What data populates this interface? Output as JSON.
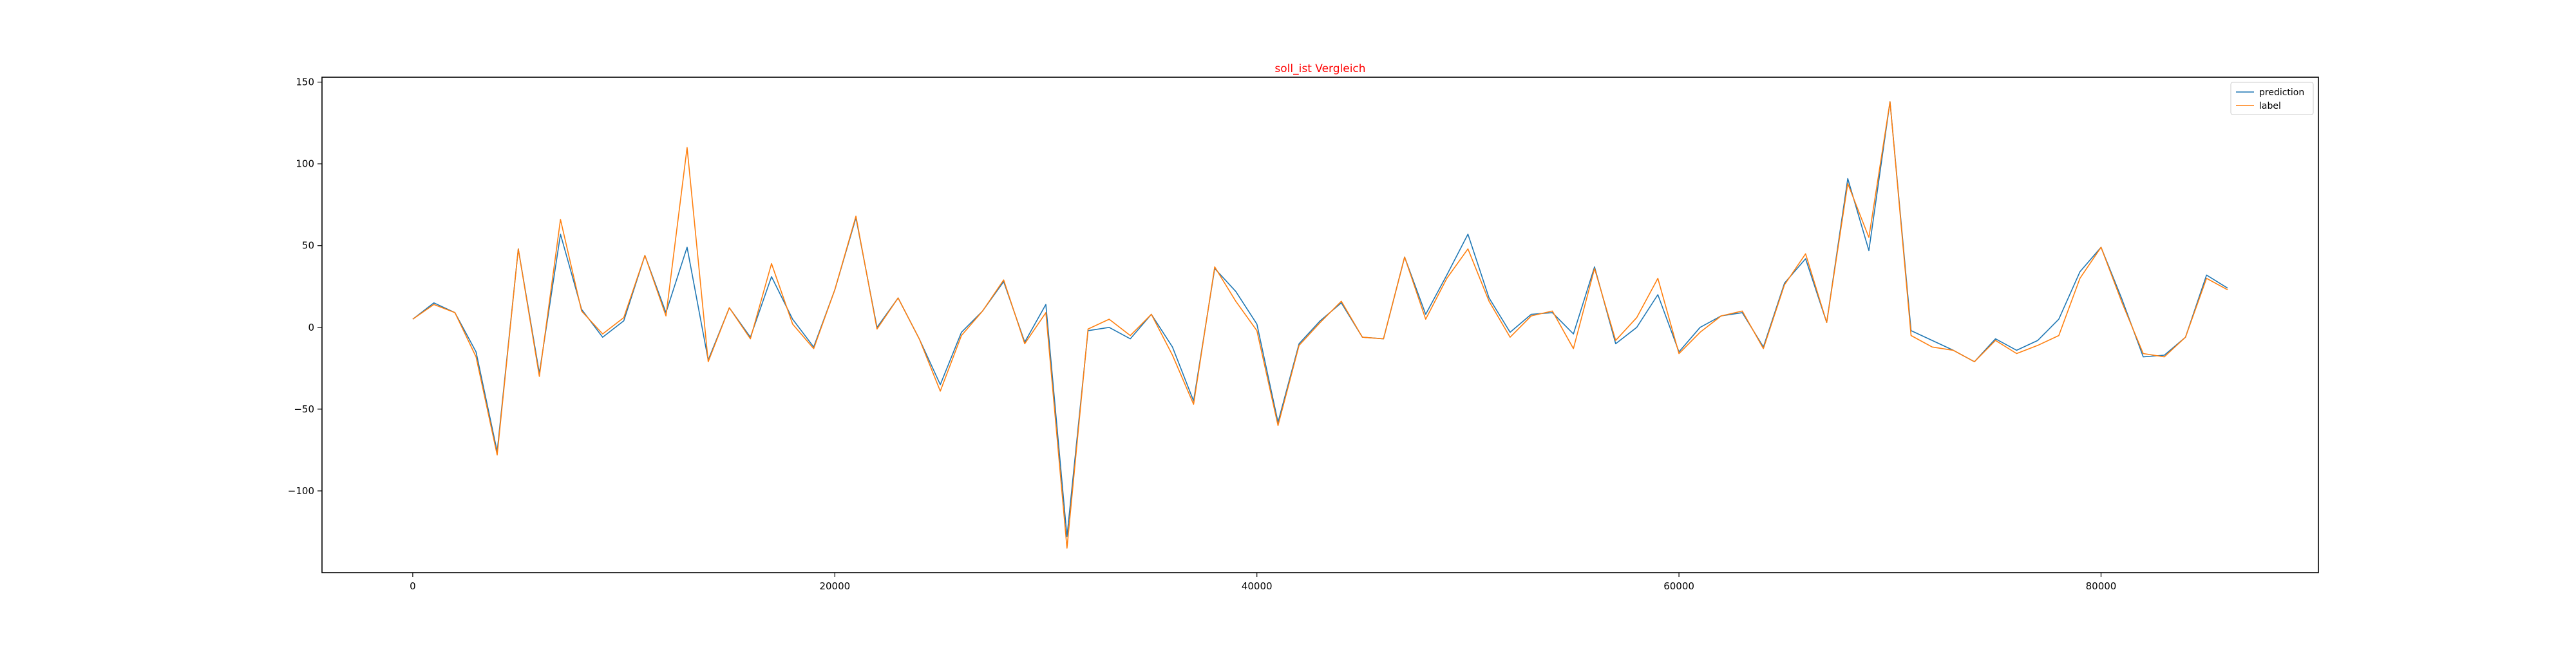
{
  "chart_data": {
    "type": "line",
    "title": "soll_ist Vergleich",
    "title_color": "#ff0000",
    "xlabel": "",
    "ylabel": "",
    "xlim": [
      -4300,
      90300
    ],
    "ylim": [
      -150,
      153
    ],
    "x_ticks": [
      0,
      20000,
      40000,
      60000,
      80000
    ],
    "x_tick_labels": [
      "0",
      "20000",
      "40000",
      "60000",
      "80000"
    ],
    "y_ticks": [
      -100,
      -50,
      0,
      50,
      100,
      150
    ],
    "y_tick_labels": [
      "−100",
      "−50",
      "0",
      "50",
      "100",
      "150"
    ],
    "grid": false,
    "legend": {
      "position": "top-right"
    },
    "x": [
      0,
      1000,
      2000,
      3000,
      4000,
      5000,
      6000,
      7000,
      8000,
      9000,
      10000,
      11000,
      12000,
      13000,
      14000,
      15000,
      16000,
      17000,
      18000,
      19000,
      20000,
      21000,
      22000,
      23000,
      24000,
      25000,
      26000,
      27000,
      28000,
      29000,
      30000,
      31000,
      32000,
      33000,
      34000,
      35000,
      36000,
      37000,
      38000,
      39000,
      40000,
      41000,
      42000,
      43000,
      44000,
      45000,
      46000,
      47000,
      48000,
      49000,
      50000,
      51000,
      52000,
      53000,
      54000,
      55000,
      56000,
      57000,
      58000,
      59000,
      60000,
      61000,
      62000,
      63000,
      64000,
      65000,
      66000,
      67000,
      68000,
      69000,
      70000,
      71000,
      72000,
      73000,
      74000,
      75000,
      76000,
      77000,
      78000,
      79000,
      80000,
      81000,
      82000,
      83000,
      84000,
      85000,
      86000
    ],
    "series": [
      {
        "name": "prediction",
        "color": "#1f77b4",
        "values": [
          5,
          15,
          9,
          -15,
          -76,
          48,
          -28,
          57,
          11,
          -6,
          4,
          44,
          9,
          49,
          -20,
          12,
          -6,
          31,
          5,
          -12,
          23,
          67,
          0,
          18,
          -7,
          -35,
          -3,
          10,
          28,
          -9,
          14,
          -128,
          -2,
          0,
          -7,
          8,
          -12,
          -45,
          36,
          22,
          2,
          -58,
          -10,
          4,
          15,
          -6,
          -7,
          43,
          8,
          32,
          57,
          18,
          -3,
          8,
          9,
          -4,
          37,
          -10,
          0,
          20,
          -15,
          0,
          7,
          9,
          -12,
          27,
          42,
          3,
          91,
          47,
          138,
          -2,
          -8,
          -14,
          -21,
          -7,
          -14,
          -8,
          5,
          34,
          49,
          17,
          -18,
          -17,
          -6,
          32,
          24
        ]
      },
      {
        "name": "label",
        "color": "#ff7f0e",
        "values": [
          5,
          14,
          9,
          -18,
          -78,
          48,
          -30,
          66,
          10,
          -4,
          6,
          44,
          7,
          110,
          -21,
          12,
          -7,
          39,
          2,
          -13,
          23,
          68,
          -1,
          18,
          -7,
          -39,
          -5,
          10,
          29,
          -10,
          9,
          -135,
          -1,
          5,
          -5,
          8,
          -17,
          -47,
          37,
          16,
          -2,
          -60,
          -11,
          3,
          16,
          -6,
          -7,
          43,
          5,
          30,
          48,
          16,
          -6,
          7,
          10,
          -13,
          36,
          -8,
          6,
          30,
          -16,
          -3,
          7,
          10,
          -13,
          26,
          45,
          3,
          88,
          55,
          138,
          -5,
          -12,
          -14,
          -21,
          -8,
          -16,
          -11,
          -5,
          30,
          49,
          15,
          -16,
          -18,
          -6,
          30,
          23
        ]
      }
    ]
  }
}
